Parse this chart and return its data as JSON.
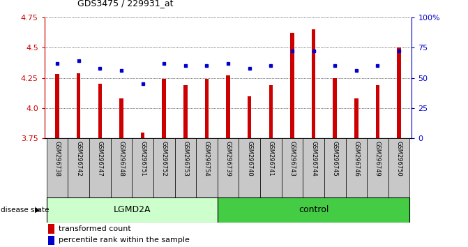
{
  "title": "GDS3475 / 229931_at",
  "samples": [
    "GSM296738",
    "GSM296742",
    "GSM296747",
    "GSM296748",
    "GSM296751",
    "GSM296752",
    "GSM296753",
    "GSM296754",
    "GSM296739",
    "GSM296740",
    "GSM296741",
    "GSM296743",
    "GSM296744",
    "GSM296745",
    "GSM296746",
    "GSM296749",
    "GSM296750"
  ],
  "bar_values": [
    4.28,
    4.29,
    4.2,
    4.08,
    3.8,
    4.24,
    4.19,
    4.24,
    4.27,
    4.1,
    4.19,
    4.62,
    4.65,
    4.25,
    4.08,
    4.19,
    4.5
  ],
  "percentile_values": [
    62,
    64,
    58,
    56,
    45,
    62,
    60,
    60,
    62,
    58,
    60,
    72,
    72,
    60,
    56,
    60,
    72
  ],
  "group_labels": [
    "LGMD2A",
    "control"
  ],
  "group_sizes": [
    8,
    9
  ],
  "ylim_left": [
    3.75,
    4.75
  ],
  "ylim_right": [
    0,
    100
  ],
  "yticks_left": [
    3.75,
    4.0,
    4.25,
    4.5,
    4.75
  ],
  "yticks_right": [
    0,
    25,
    50,
    75,
    100
  ],
  "ytick_labels_right": [
    "0",
    "25",
    "50",
    "75",
    "100%"
  ],
  "bar_color": "#cc0000",
  "dot_color": "#0000cc",
  "lgmd2a_bg": "#ccffcc",
  "control_bg": "#44cc44",
  "label_row_bg": "#c8c8c8",
  "disease_state_label": "disease state",
  "legend_bar_label": "transformed count",
  "legend_dot_label": "percentile rank within the sample"
}
